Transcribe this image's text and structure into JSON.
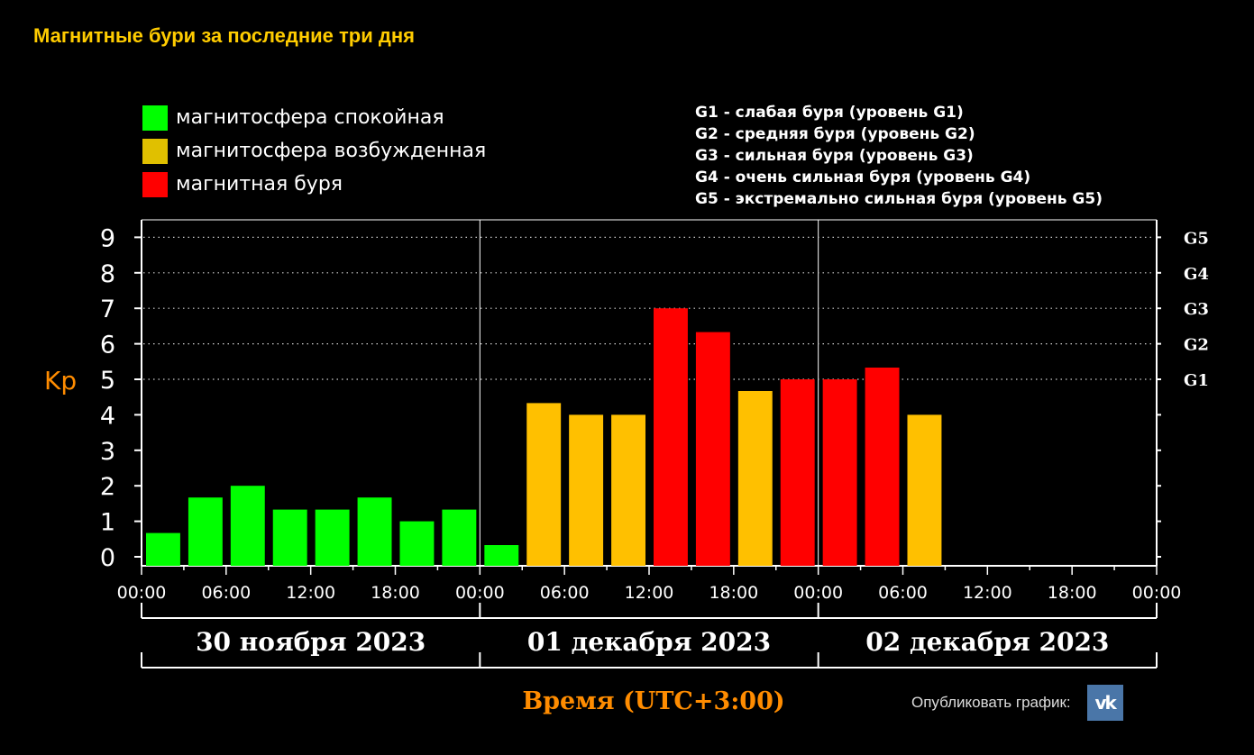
{
  "page": {
    "title": "Магнитные бури за последние три дня",
    "publish_label": "Опубликовать график:",
    "vk_icon": "vk-icon",
    "vk_text": "vk"
  },
  "legend": {
    "items": [
      {
        "label": "магнитосфера спокойная",
        "color": "#00ff00"
      },
      {
        "label": "магнитосфера возбужденная",
        "color": "#ffc000"
      },
      {
        "label": "магнитная буря",
        "color": "#ff0000"
      }
    ],
    "levels": [
      "G1 - слабая буря (уровень G1)",
      "G2 - средняя буря (уровень G2)",
      "G3 - сильная буря (уровень G3)",
      "G4 - очень сильная буря (уровень G4)",
      "G5 - экстремально сильная буря (уровень G5)"
    ]
  },
  "chart_data": {
    "type": "bar",
    "ylabel": "Kp",
    "xlabel": "Время (UTC+3:00)",
    "ylim": [
      0,
      9
    ],
    "yticks": [
      "0",
      "1",
      "2",
      "3",
      "4",
      "5",
      "6",
      "7",
      "8",
      "9"
    ],
    "g_levels": [
      {
        "label": "G1",
        "kp": 5
      },
      {
        "label": "G2",
        "kp": 6
      },
      {
        "label": "G3",
        "kp": 7
      },
      {
        "label": "G4",
        "kp": 8
      },
      {
        "label": "G5",
        "kp": 9
      }
    ],
    "grid": "dotted at Kp 5-9",
    "xticks": [
      "00:00",
      "06:00",
      "12:00",
      "18:00",
      "00:00",
      "06:00",
      "12:00",
      "18:00",
      "00:00",
      "06:00",
      "12:00",
      "18:00",
      "00:00"
    ],
    "days": [
      "30 ноября 2023",
      "01 декабря 2023",
      "02 декабря 2023"
    ],
    "interval_hours": 3,
    "values": [
      0.67,
      1.67,
      2.0,
      1.33,
      1.33,
      1.67,
      1.0,
      1.33,
      0.33,
      4.33,
      4.0,
      4.0,
      7.0,
      6.33,
      4.67,
      5.0,
      5.0,
      5.33,
      4.0
    ],
    "colors": {
      "quiet": "#00ff00",
      "active": "#ffc000",
      "storm": "#ff0000",
      "axis_label": "#ff8c00"
    }
  }
}
